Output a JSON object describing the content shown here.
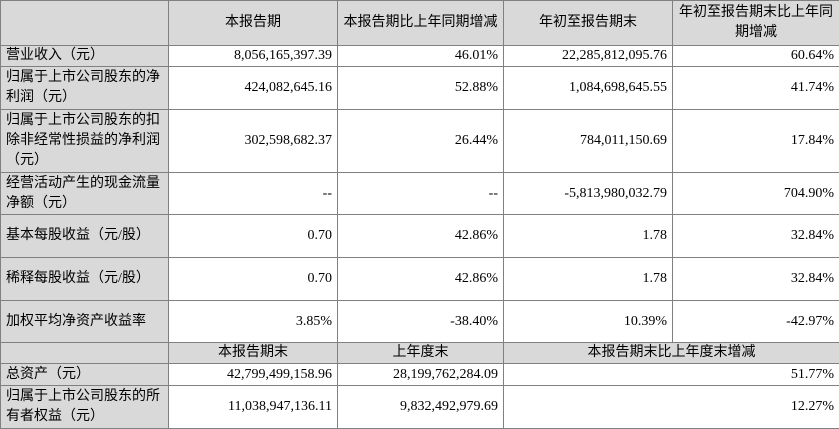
{
  "header": {
    "columns": [
      "本报告期",
      "本报告期比上年同期增减",
      "年初至报告期末",
      "年初至报告期末比上年同期增减"
    ]
  },
  "rows": [
    {
      "label": "营业收入（元）",
      "values": [
        "8,056,165,397.39",
        "46.01%",
        "22,285,812,095.76",
        "60.64%"
      ]
    },
    {
      "label": "归属于上市公司股东的净利润（元）",
      "values": [
        "424,082,645.16",
        "52.88%",
        "1,084,698,645.55",
        "41.74%"
      ]
    },
    {
      "label": "归属于上市公司股东的扣除非经常性损益的净利润（元）",
      "values": [
        "302,598,682.37",
        "26.44%",
        "784,011,150.69",
        "17.84%"
      ]
    },
    {
      "label": "经营活动产生的现金流量净额（元）",
      "values": [
        "--",
        "--",
        "-5,813,980,032.79",
        "704.90%"
      ]
    },
    {
      "label": "基本每股收益（元/股）",
      "values": [
        "0.70",
        "42.86%",
        "1.78",
        "32.84%"
      ]
    },
    {
      "label": "稀释每股收益（元/股）",
      "values": [
        "0.70",
        "42.86%",
        "1.78",
        "32.84%"
      ]
    },
    {
      "label": "加权平均净资产收益率",
      "values": [
        "3.85%",
        "-38.40%",
        "10.39%",
        "-42.97%"
      ]
    }
  ],
  "sub_header": {
    "columns": [
      "本报告期末",
      "上年度末",
      "本报告期末比上年度末增减"
    ]
  },
  "bottom_rows": [
    {
      "label": "总资产（元）",
      "values": [
        "42,799,499,158.96",
        "28,199,762,284.09",
        "51.77%"
      ]
    },
    {
      "label": "归属于上市公司股东的所有者权益（元）",
      "values": [
        "11,038,947,136.11",
        "9,832,492,979.69",
        "12.27%"
      ]
    }
  ]
}
